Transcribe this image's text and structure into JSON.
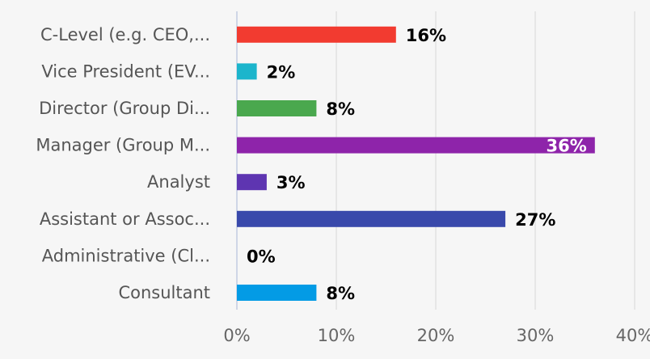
{
  "chart_data": {
    "type": "bar",
    "orientation": "horizontal",
    "title": "",
    "xlabel": "",
    "ylabel": "",
    "xlim": [
      0,
      40
    ],
    "x_ticks": [
      "0%",
      "10%",
      "20%",
      "30%",
      "40%"
    ],
    "x_tick_values": [
      0,
      10,
      20,
      30,
      40
    ],
    "grid": true,
    "categories": [
      "C-Level (e.g. CEO,...",
      "Vice President (EV...",
      "Director (Group Di...",
      "Manager (Group M...",
      "Analyst",
      "Assistant or Assoc...",
      "Administrative (Cl...",
      "Consultant"
    ],
    "values": [
      16,
      2,
      8,
      36,
      3,
      27,
      0,
      8
    ],
    "data_labels": [
      "16%",
      "2%",
      "8%",
      "36%",
      "3%",
      "27%",
      "0%",
      "8%"
    ],
    "colors": [
      "#f23b30",
      "#1cb5cc",
      "#4aa84e",
      "#8e24aa",
      "#5e35b1",
      "#3949ab",
      "#e53935",
      "#039be5"
    ]
  }
}
